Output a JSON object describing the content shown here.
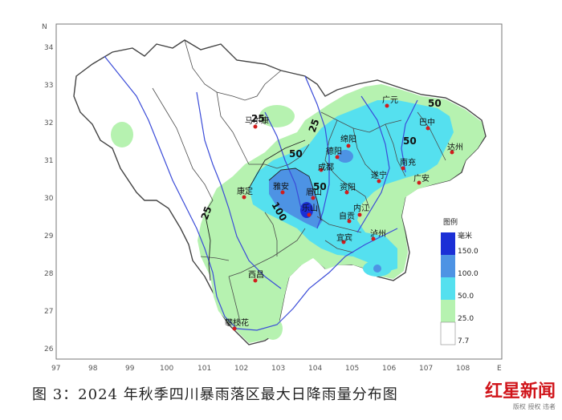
{
  "map": {
    "lat_ticks": [
      "34",
      "33",
      "32",
      "31",
      "30",
      "29",
      "28",
      "27",
      "26"
    ],
    "lon_ticks": [
      "97",
      "98",
      "99",
      "100",
      "101",
      "102",
      "103",
      "104",
      "105",
      "106",
      "107",
      "108"
    ],
    "north_label": "N",
    "east_label": "E",
    "contour_labels": [
      "25",
      "25",
      "25",
      "50",
      "50",
      "50",
      "50",
      "100"
    ],
    "cities": [
      {
        "name": "巴中"
      },
      {
        "name": "广元"
      },
      {
        "name": "绵阳"
      },
      {
        "name": "德阳"
      },
      {
        "name": "成都"
      },
      {
        "name": "南充"
      },
      {
        "name": "达州"
      },
      {
        "name": "遂宁"
      },
      {
        "name": "广安"
      },
      {
        "name": "资阳"
      },
      {
        "name": "内江"
      },
      {
        "name": "自贡"
      },
      {
        "name": "宜宾"
      },
      {
        "name": "泸州"
      },
      {
        "name": "乐山"
      },
      {
        "name": "眉山"
      },
      {
        "name": "雅安"
      },
      {
        "name": "康定"
      },
      {
        "name": "马尔康"
      },
      {
        "name": "西昌"
      },
      {
        "name": "攀枝花"
      }
    ],
    "colors": {
      "lvl_25": "#b6f2b0",
      "lvl_50": "#55e0ef",
      "lvl_100": "#4d93e4",
      "lvl_150": "#1b2fd6",
      "river": "#3b4cd8",
      "border": "#4a4a4a",
      "city": "#d01d1d"
    }
  },
  "legend": {
    "title": "图例",
    "unit": "毫米",
    "levels": [
      "150.0",
      "100.0",
      "50.0",
      "25.0",
      "7.7"
    ]
  },
  "caption": "图 3：2024 年秋季四川暴雨落区最大日降雨量分布图",
  "watermark": {
    "brand": "红星新闻",
    "small": "版权 授权 违者"
  }
}
